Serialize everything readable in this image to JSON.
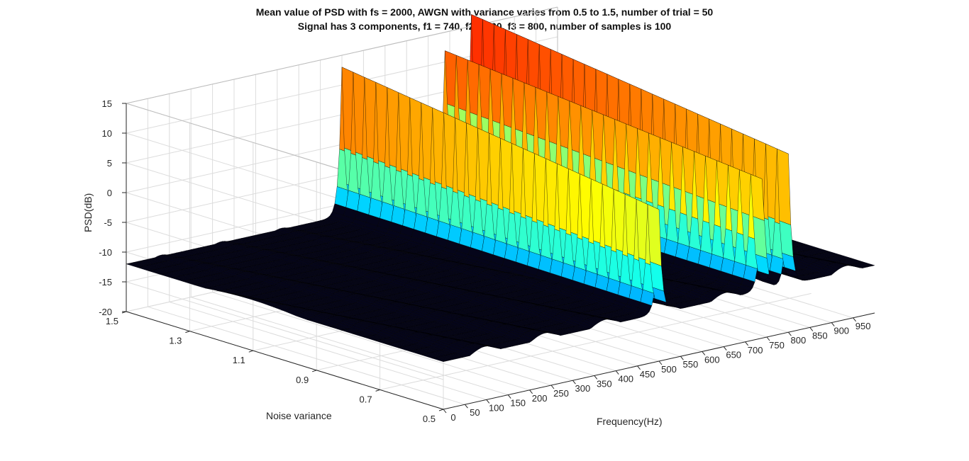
{
  "window": {
    "title_line1": "Mean value of PSD with fs = 2000, AWGN with variance varies from 0.5 to 1.5, number of trial = 50",
    "title_line2": "Signal has 3 components, f1 = 740, f2 = 500, f3 = 800, number of samples is 100"
  },
  "chart_data": {
    "type": "surface",
    "title": "Mean value of PSD with fs = 2000, AWGN with variance varies from 0.5 to 1.5, number of trial = 50\nSignal has 3 components, f1 = 740, f2 = 500, f3 = 800, number of samples is 100",
    "xlabel": "Frequency(Hz)",
    "ylabel": "Noise variance",
    "zlabel": "PSD(dB)",
    "xlim": [
      0,
      1000
    ],
    "ylim": [
      0.5,
      1.5
    ],
    "zlim": [
      -20,
      15
    ],
    "xticks": [
      0,
      50,
      100,
      150,
      200,
      250,
      300,
      350,
      400,
      450,
      500,
      550,
      600,
      650,
      700,
      750,
      800,
      850,
      900,
      950
    ],
    "yticks": [
      0.5,
      0.7,
      0.9,
      1.1,
      1.3,
      1.5
    ],
    "zticks": [
      -20,
      -15,
      -10,
      -5,
      0,
      5,
      10,
      15
    ],
    "grid": true,
    "colormap": "jet",
    "baseline_level_db": -12,
    "peaks": [
      {
        "frequency": 500,
        "psd_db_low_variance": 5.5,
        "psd_db_high_variance": 13
      },
      {
        "frequency": 740,
        "psd_db_low_variance": 10,
        "psd_db_high_variance": 16
      },
      {
        "frequency": 800,
        "psd_db_low_variance": 10,
        "psd_db_high_variance": 17
      }
    ]
  }
}
